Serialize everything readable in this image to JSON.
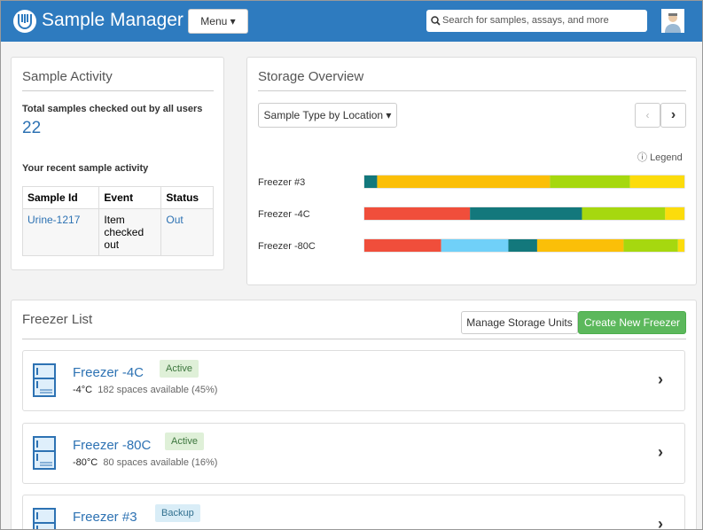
{
  "header": {
    "app_name": "Sample Manager",
    "menu": "Menu",
    "search_placeholder": "Search for samples, assays, and more"
  },
  "sample_activity": {
    "title": "Sample Activity",
    "total_label": "Total samples checked out by all users",
    "total": "22",
    "recent_label": "Your recent sample activity",
    "table": {
      "columns": [
        "Sample Id",
        "Event",
        "Status"
      ],
      "rows": [
        [
          "Urine-1217",
          "Item checked out",
          "Out"
        ]
      ]
    }
  },
  "storage_overview": {
    "title": "Storage Overview",
    "selector": "Sample Type by Location",
    "legend": "Legend",
    "chart_data": {
      "type": "bar",
      "orientation": "horizontal",
      "stacked": true,
      "categories": [
        "Freezer #3",
        "Freezer -4C",
        "Freezer -80C"
      ],
      "xlim": [
        0,
        100
      ],
      "series": [
        {
          "color": "#f04e3b",
          "values": [
            0,
            33,
            24
          ]
        },
        {
          "color": "#70d0f8",
          "values": [
            0,
            0,
            21
          ]
        },
        {
          "color": "#13787c",
          "values": [
            4,
            35,
            9
          ]
        },
        {
          "color": "#fbbf08",
          "values": [
            54,
            0,
            27
          ]
        },
        {
          "color": "#a6d80f",
          "values": [
            25,
            26,
            17
          ]
        },
        {
          "color": "#fcdc0c",
          "values": [
            17,
            6,
            2
          ]
        }
      ]
    }
  },
  "freezer_list": {
    "title": "Freezer List",
    "manage_button": "Manage Storage Units",
    "create_button": "Create New Freezer",
    "items": [
      {
        "name": "Freezer -4C",
        "status": "Active",
        "temperature": "-4°C",
        "spaces": "182 spaces available (45%)"
      },
      {
        "name": "Freezer -80C",
        "status": "Active",
        "temperature": "-80°C",
        "spaces": "80 spaces available (16%)"
      },
      {
        "name": "Freezer #3",
        "status": "Backup"
      }
    ]
  }
}
